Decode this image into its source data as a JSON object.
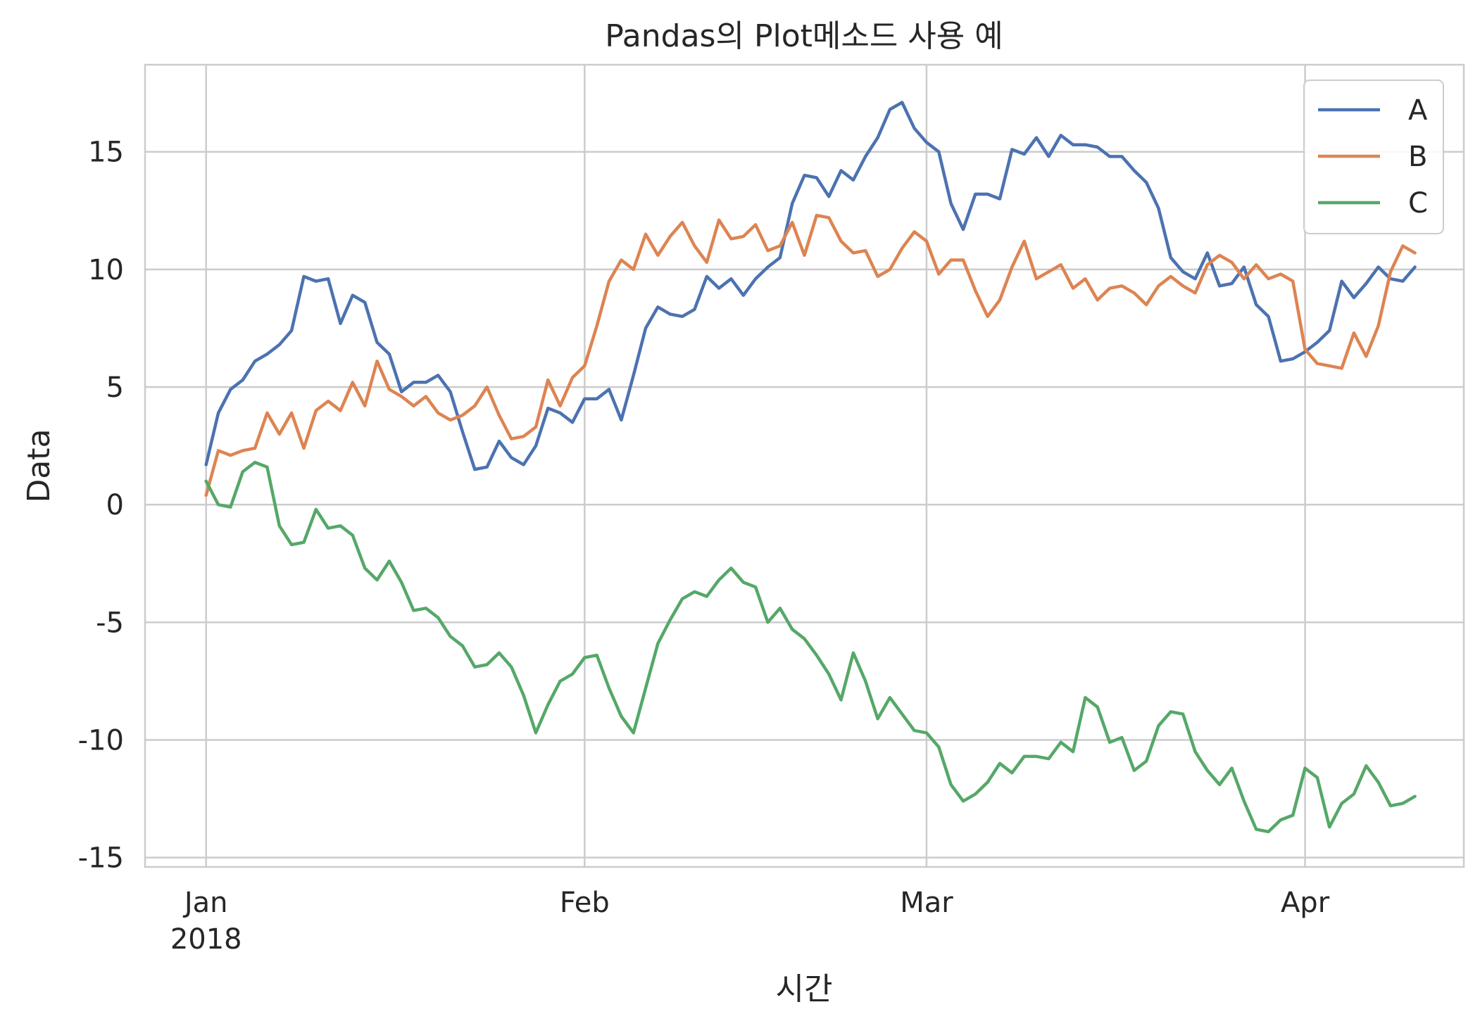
{
  "chart_data": {
    "type": "line",
    "title": "Pandas의 Plot메소드 사용 예",
    "xlabel": "시간",
    "ylabel": "Data",
    "x_start": "2018-01-01",
    "x_end": "2018-04-10",
    "x_frequency": "daily",
    "xlim": [
      "2017-12-27",
      "2018-04-14"
    ],
    "ylim": [
      -15.4,
      18.7
    ],
    "x_ticks": [
      {
        "date": "2018-01-01",
        "label": "Jan",
        "sublabel": "2018"
      },
      {
        "date": "2018-02-01",
        "label": "Feb",
        "sublabel": ""
      },
      {
        "date": "2018-03-01",
        "label": "Mar",
        "sublabel": ""
      },
      {
        "date": "2018-04-01",
        "label": "Apr",
        "sublabel": ""
      }
    ],
    "y_ticks": [
      -15,
      -10,
      -5,
      0,
      5,
      10,
      15
    ],
    "y_tick_labels": [
      "-15",
      "-10",
      "-5",
      "0",
      "5",
      "10",
      "15"
    ],
    "grid": true,
    "legend_position": "top-right",
    "series": [
      {
        "name": "A",
        "color": "#4c72b0",
        "values": [
          1.7,
          3.9,
          4.9,
          5.3,
          6.1,
          6.4,
          6.8,
          7.4,
          9.7,
          9.5,
          9.6,
          7.7,
          8.9,
          8.6,
          6.9,
          6.4,
          4.8,
          5.2,
          5.2,
          5.5,
          4.8,
          3.1,
          1.5,
          1.6,
          2.7,
          2.0,
          1.7,
          2.5,
          4.1,
          3.9,
          3.5,
          4.5,
          4.5,
          4.9,
          3.6,
          5.5,
          7.5,
          8.4,
          8.1,
          8.0,
          8.3,
          9.7,
          9.2,
          9.6,
          8.9,
          9.6,
          10.1,
          10.5,
          12.8,
          14.0,
          13.9,
          13.1,
          14.2,
          13.8,
          14.8,
          15.6,
          16.8,
          17.1,
          16.0,
          15.4,
          15.0,
          12.8,
          11.7,
          13.2,
          13.2,
          13.0,
          15.1,
          14.9,
          15.6,
          14.8,
          15.7,
          15.3,
          15.3,
          15.2,
          14.8,
          14.8,
          14.2,
          13.7,
          12.6,
          10.5,
          9.9,
          9.6,
          10.7,
          9.3,
          9.4,
          10.1,
          8.5,
          8.0,
          6.1,
          6.2,
          6.5,
          6.9,
          7.4,
          9.5,
          8.8,
          9.4,
          10.1,
          9.6,
          9.5,
          10.1
        ]
      },
      {
        "name": "B",
        "color": "#dd8452",
        "values": [
          0.4,
          2.3,
          2.1,
          2.3,
          2.4,
          3.9,
          3.0,
          3.9,
          2.4,
          4.0,
          4.4,
          4.0,
          5.2,
          4.2,
          6.1,
          4.9,
          4.6,
          4.2,
          4.6,
          3.9,
          3.6,
          3.8,
          4.2,
          5.0,
          3.8,
          2.8,
          2.9,
          3.3,
          5.3,
          4.2,
          5.4,
          5.9,
          7.6,
          9.5,
          10.4,
          10.0,
          11.5,
          10.6,
          11.4,
          12.0,
          11.0,
          10.3,
          12.1,
          11.3,
          11.4,
          11.9,
          10.8,
          11.0,
          12.0,
          10.6,
          12.3,
          12.2,
          11.2,
          10.7,
          10.8,
          9.7,
          10.0,
          10.9,
          11.6,
          11.2,
          9.8,
          10.4,
          10.4,
          9.1,
          8.0,
          8.7,
          10.1,
          11.2,
          9.6,
          9.9,
          10.2,
          9.2,
          9.6,
          8.7,
          9.2,
          9.3,
          9.0,
          8.5,
          9.3,
          9.7,
          9.3,
          9.0,
          10.2,
          10.6,
          10.3,
          9.6,
          10.2,
          9.6,
          9.8,
          9.5,
          6.6,
          6.0,
          5.9,
          5.8,
          7.3,
          6.3,
          7.6,
          9.9,
          11.0,
          10.7
        ]
      },
      {
        "name": "C",
        "color": "#55a868",
        "values": [
          1.0,
          0.0,
          -0.1,
          1.4,
          1.8,
          1.6,
          -0.9,
          -1.7,
          -1.6,
          -0.2,
          -1.0,
          -0.9,
          -1.3,
          -2.7,
          -3.2,
          -2.4,
          -3.3,
          -4.5,
          -4.4,
          -4.8,
          -5.6,
          -6.0,
          -6.9,
          -6.8,
          -6.3,
          -6.9,
          -8.1,
          -9.7,
          -8.5,
          -7.5,
          -7.2,
          -6.5,
          -6.4,
          -7.8,
          -9.0,
          -9.7,
          -7.8,
          -5.9,
          -4.9,
          -4.0,
          -3.7,
          -3.9,
          -3.2,
          -2.7,
          -3.3,
          -3.5,
          -5.0,
          -4.4,
          -5.3,
          -5.7,
          -6.4,
          -7.2,
          -8.3,
          -6.3,
          -7.5,
          -9.1,
          -8.2,
          -8.9,
          -9.6,
          -9.7,
          -10.3,
          -11.9,
          -12.6,
          -12.3,
          -11.8,
          -11.0,
          -11.4,
          -10.7,
          -10.7,
          -10.8,
          -10.1,
          -10.5,
          -8.2,
          -8.6,
          -10.1,
          -9.9,
          -11.3,
          -10.9,
          -9.4,
          -8.8,
          -8.9,
          -10.5,
          -11.3,
          -11.9,
          -11.2,
          -12.6,
          -13.8,
          -13.9,
          -13.4,
          -13.2,
          -11.2,
          -11.6,
          -13.7,
          -12.7,
          -12.3,
          -11.1,
          -11.8,
          -12.8,
          -12.7,
          -12.4
        ]
      }
    ]
  }
}
